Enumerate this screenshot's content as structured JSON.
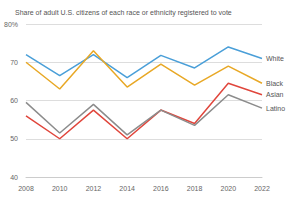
{
  "chart_data": {
    "type": "line",
    "title": "Share of adult U.S. citizens of each race or ethnicity registered to vote",
    "categories": [
      "2008",
      "2010",
      "2012",
      "2014",
      "2016",
      "2018",
      "2020",
      "2022"
    ],
    "series": [
      {
        "name": "White",
        "color": "#4a9fd8",
        "values": [
          72.0,
          66.5,
          72.0,
          66.0,
          71.8,
          68.5,
          74.0,
          71.0
        ]
      },
      {
        "name": "Black",
        "color": "#e8a826",
        "values": [
          70.0,
          63.0,
          73.0,
          63.5,
          69.5,
          64.0,
          69.0,
          64.5
        ]
      },
      {
        "name": "Asian",
        "color": "#e0463c",
        "values": [
          56.0,
          50.0,
          57.5,
          50.0,
          57.5,
          54.0,
          64.5,
          61.5
        ]
      },
      {
        "name": "Latino",
        "color": "#8c8c8c",
        "values": [
          59.5,
          51.5,
          59.0,
          51.0,
          57.5,
          53.5,
          61.5,
          58.0
        ]
      }
    ],
    "ylim": [
      40,
      80
    ],
    "yticks": [
      40,
      50,
      60,
      70,
      {
        "value": 80,
        "label": "80%"
      }
    ],
    "grid": true
  }
}
